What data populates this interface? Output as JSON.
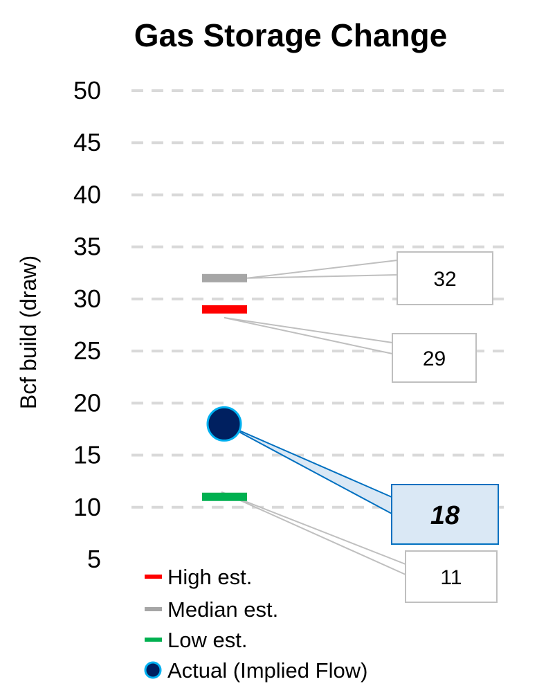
{
  "chart_data": {
    "type": "scatter",
    "title": "Gas Storage Change",
    "ylabel": "Bcf build (draw)",
    "ylim": [
      5,
      50
    ],
    "yticks": [
      5,
      10,
      15,
      20,
      25,
      30,
      35,
      40,
      45,
      50
    ],
    "grid": true,
    "series": [
      {
        "name": "High est.",
        "value": 29,
        "label": "29",
        "color": "#ff0000",
        "marker": "dash"
      },
      {
        "name": "Median est.",
        "value": 32,
        "label": "32",
        "color": "#a6a6a6",
        "marker": "dash"
      },
      {
        "name": "Low est.",
        "value": 11,
        "label": "11",
        "color": "#00b050",
        "marker": "dash"
      },
      {
        "name": "Actual (Implied Flow)",
        "value": 18,
        "label": "18",
        "color": "#002060",
        "marker": "circle"
      }
    ],
    "legend_position": "bottom-left"
  },
  "colors": {
    "grid": "#d9d9d9",
    "callout_border": "#bfbfbf",
    "actual_callout_fill": "#dae8f5",
    "actual_callout_border": "#0070c0",
    "actual_marker_edge": "#00b0f0"
  }
}
